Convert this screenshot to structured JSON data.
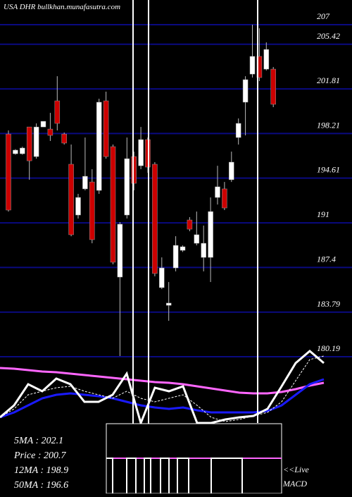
{
  "chart_data": [
    {
      "type": "candlestick",
      "title": "USA DHR bullkhan.munafasutra.com",
      "open": [
        198.17,
        196.58,
        196.58,
        198.74,
        196.35,
        198.74,
        198.57,
        200.85,
        198.17,
        195.73,
        191.63,
        193.74,
        194.3,
        193.62,
        200.85,
        197.15,
        186.62,
        191.63,
        196.35,
        195.61,
        197.72,
        195.73,
        185.77,
        184.34,
        187.36,
        188.78,
        191.23,
        189.35,
        188.21,
        188.21,
        193.05,
        193.74,
        194.48,
        197.89,
        200.74,
        203.01,
        204.44,
        203.41,
        203.41
      ],
      "high": [
        198.46,
        196.95,
        197.15,
        198.74,
        199.03,
        199.2,
        199.88,
        202.84,
        198.29,
        197.32,
        193.34,
        197.89,
        195.33,
        201.02,
        201.59,
        197.32,
        191.06,
        197.89,
        196.75,
        198.74,
        197.89,
        195.9,
        188.21,
        186.22,
        189.92,
        189.18,
        191.46,
        191.91,
        190.78,
        193.05,
        195.61,
        194.3,
        196.75,
        199.43,
        202.84,
        207.0,
        206.71,
        205.57,
        203.58
      ],
      "low": [
        191.91,
        196.5,
        196.5,
        194.48,
        196.18,
        198.74,
        197.61,
        198.46,
        197.32,
        189.92,
        191.35,
        193.62,
        189.35,
        193.34,
        196.18,
        187.65,
        180.25,
        191.35,
        193.62,
        195.33,
        195.04,
        186.68,
        185.65,
        183.09,
        187.08,
        188.65,
        190.32,
        189.18,
        187.08,
        186.22,
        192.48,
        192.03,
        194.3,
        197.32,
        198.06,
        202.73,
        202.44,
        203.3,
        200.34
      ],
      "close": [
        192.03,
        196.87,
        197.04,
        196.01,
        198.74,
        199.2,
        198.06,
        199.03,
        197.44,
        190.04,
        193.05,
        194.76,
        189.64,
        200.74,
        196.35,
        187.82,
        190.89,
        196.18,
        194.19,
        197.72,
        195.5,
        186.91,
        187.36,
        184.52,
        189.18,
        189.07,
        190.49,
        190.04,
        189.35,
        191.91,
        193.91,
        192.2,
        195.9,
        199.03,
        202.56,
        204.44,
        202.73,
        205.0,
        200.57
      ],
      "up_color": "#ffffff",
      "down_color": "#cc0000",
      "grid_color": "#0a0a80",
      "ylim": [
        180.19,
        207
      ],
      "yticks": [
        180.19,
        183.79,
        187.4,
        191,
        194.61,
        198.21,
        201.81,
        205.42,
        207
      ],
      "grid": true,
      "annotations": [
        "5MA : 202.1",
        "Price : 200.7",
        "12MA : 198.9",
        "50MA : 196.6"
      ],
      "live_label": "<<Live",
      "indicator_label": "MACD"
    },
    {
      "type": "line",
      "series": [
        {
          "color": "#ff66ff",
          "values": [
            78,
            77,
            75,
            73,
            72,
            70,
            68,
            66,
            64,
            62,
            60,
            58,
            57,
            55,
            52,
            49,
            46,
            43,
            42,
            42,
            44,
            48,
            53,
            57
          ]
        },
        {
          "color": "#1a1aff",
          "values": [
            8,
            15,
            25,
            35,
            40,
            42,
            40,
            38,
            35,
            30,
            25,
            22,
            20,
            22,
            18,
            15,
            15,
            15,
            15,
            17,
            25,
            40,
            55,
            62
          ]
        },
        {
          "color": "#ffffff",
          "dashed": true,
          "values": [
            8,
            20,
            40,
            45,
            50,
            52,
            45,
            40,
            35,
            45,
            35,
            30,
            35,
            40,
            25,
            8,
            2,
            5,
            10,
            15,
            30,
            60,
            90,
            95
          ]
        },
        {
          "color": "#ffffff",
          "values": [
            8,
            25,
            55,
            45,
            63,
            55,
            30,
            30,
            40,
            70,
            0,
            50,
            45,
            52,
            0,
            0,
            5,
            8,
            10,
            20,
            52,
            85,
            102,
            85
          ]
        }
      ]
    }
  ]
}
